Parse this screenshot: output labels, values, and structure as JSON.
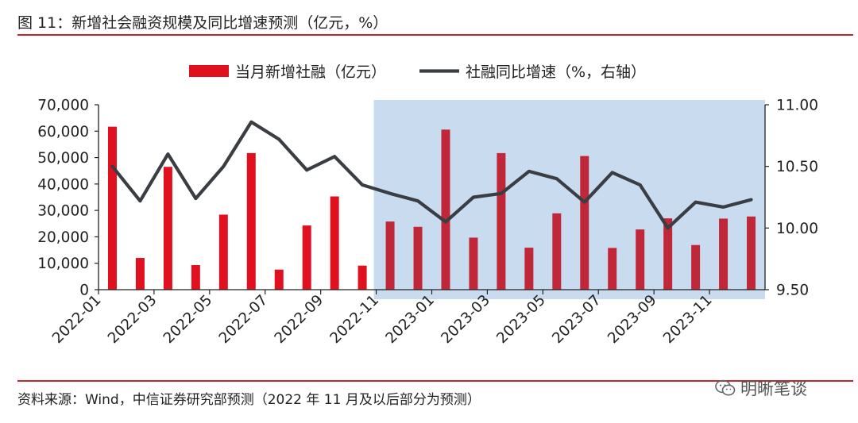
{
  "figure_title": "图 11：新增社会融资规模及同比增速预测（亿元，%）",
  "source_note": "资料来源：Wind，中信证券研究部预测（2022 年 11 月及以后部分为预测）",
  "watermark": "明晰笔谈",
  "watermark_icon": "wechat-icon",
  "colors": {
    "bar_actual": "#e0101e",
    "bar_forecast": "#c0283a",
    "line": "#3a3d42",
    "forecast_shade": "#c8dbef",
    "rule": "#c0282d"
  },
  "chart_data": {
    "type": "bar+line",
    "legend": {
      "bar_label": "当月新增社融（亿元）",
      "line_label": "社融同比增速（%，右轴）",
      "position": "top-center"
    },
    "categories": [
      "2022-01",
      "2022-02",
      "2022-03",
      "2022-04",
      "2022-05",
      "2022-06",
      "2022-07",
      "2022-08",
      "2022-09",
      "2022-10",
      "2022-11",
      "2022-12",
      "2023-01",
      "2023-02",
      "2023-03",
      "2023-04",
      "2023-05",
      "2023-06",
      "2023-07",
      "2023-08",
      "2023-09",
      "2023-10",
      "2023-11",
      "2023-12"
    ],
    "x_tick_labels": [
      "2022-01",
      "2022-03",
      "2022-05",
      "2022-07",
      "2022-09",
      "2022-11",
      "2023-01",
      "2023-03",
      "2023-05",
      "2023-07",
      "2023-09",
      "2023-11"
    ],
    "forecast_start": "2022-11",
    "series": [
      {
        "name": "当月新增社融（亿元）",
        "type": "bar",
        "axis": "left",
        "values": [
          61700,
          12000,
          46500,
          9300,
          28400,
          51700,
          7600,
          24300,
          35300,
          9100,
          25800,
          23800,
          60600,
          19700,
          51700,
          15900,
          28900,
          50600,
          15800,
          22800,
          27000,
          16900,
          26900,
          27700
        ]
      },
      {
        "name": "社融同比增速（%，右轴）",
        "type": "line",
        "axis": "right",
        "values": [
          10.5,
          10.22,
          10.6,
          10.24,
          10.5,
          10.86,
          10.72,
          10.47,
          10.58,
          10.35,
          10.28,
          10.22,
          10.05,
          10.25,
          10.28,
          10.46,
          10.4,
          10.21,
          10.45,
          10.35,
          10.0,
          10.21,
          10.17,
          10.23
        ]
      }
    ],
    "left_axis": {
      "ylim": [
        0,
        70000
      ],
      "ticks": [
        "0",
        "10,000",
        "20,000",
        "30,000",
        "40,000",
        "50,000",
        "60,000",
        "70,000"
      ]
    },
    "right_axis": {
      "ylim": [
        9.5,
        11.0
      ],
      "ticks": [
        "9.50",
        "10.00",
        "10.50",
        "11.00"
      ]
    },
    "grid": false
  }
}
